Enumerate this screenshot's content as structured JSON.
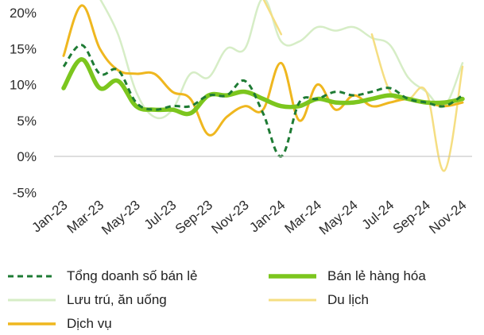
{
  "chart_data": {
    "type": "line",
    "x": [
      "Jan-23",
      "Feb-23",
      "Mar-23",
      "Apr-23",
      "May-23",
      "Jun-23",
      "Jul-23",
      "Aug-23",
      "Sep-23",
      "Oct-23",
      "Nov-23",
      "Dec-23",
      "Jan-24",
      "Feb-24",
      "Mar-24",
      "Apr-24",
      "May-24",
      "Jun-24",
      "Jul-24",
      "Aug-24",
      "Sep-24",
      "Oct-24",
      "Nov-24"
    ],
    "x_tick_labels": [
      "Jan-23",
      "Mar-23",
      "May-23",
      "Jul-23",
      "Sep-23",
      "Nov-23",
      "Jan-24",
      "Mar-24",
      "May-24",
      "Jul-24",
      "Sep-24",
      "Nov-24"
    ],
    "y_tick_labels": [
      "20%",
      "15%",
      "10%",
      "5%",
      "0%",
      "-5%"
    ],
    "ylim": [
      -5,
      20
    ],
    "grid": false,
    "legend_placement": "bottom",
    "series": [
      {
        "name": "Tổng doanh số bán lẻ",
        "color": "#1e7b34",
        "style": "dashed",
        "width": 3,
        "values": [
          12.5,
          15.5,
          11.5,
          12.0,
          7.5,
          6.5,
          7.0,
          7.0,
          8.5,
          8.5,
          10.5,
          6.0,
          0.0,
          7.5,
          8.0,
          9.0,
          8.5,
          9.0,
          9.5,
          8.0,
          7.5,
          7.0,
          8.5
        ]
      },
      {
        "name": "Bán lẻ hàng hóa",
        "color": "#7cc61e",
        "style": "solid",
        "width": 5.5,
        "values": [
          9.5,
          13.5,
          9.5,
          10.5,
          7.0,
          6.5,
          6.5,
          6.0,
          8.5,
          8.5,
          9.0,
          8.0,
          7.0,
          7.0,
          8.0,
          7.5,
          7.5,
          8.0,
          8.5,
          8.0,
          7.5,
          7.5,
          8.0
        ]
      },
      {
        "name": "Lưu trú, ăn uống",
        "color": "#d6edc6",
        "style": "solid",
        "width": 2.5,
        "values": [
          null,
          null,
          22.0,
          17.0,
          9.0,
          5.5,
          6.5,
          11.5,
          11.0,
          15.0,
          15.0,
          22.0,
          16.0,
          16.0,
          18.0,
          17.5,
          18.0,
          16.5,
          15.5,
          11.0,
          9.0,
          7.0,
          13.0
        ]
      },
      {
        "name": "Du lịch",
        "color": "#f5de82",
        "style": "solid",
        "width": 2.5,
        "values": [
          null,
          null,
          null,
          null,
          null,
          null,
          21.0,
          null,
          null,
          null,
          null,
          22.0,
          17.0,
          null,
          null,
          null,
          null,
          17.0,
          9.0,
          8.0,
          9.0,
          -2.0,
          12.5
        ]
      },
      {
        "name": "Dịch vụ",
        "color": "#efb71f",
        "style": "solid",
        "width": 3,
        "values": [
          14.0,
          21.0,
          15.0,
          12.0,
          11.5,
          11.5,
          9.0,
          8.0,
          3.0,
          5.5,
          7.0,
          6.5,
          13.0,
          5.0,
          10.0,
          6.5,
          8.5,
          7.0,
          7.5,
          8.0,
          7.5,
          7.0,
          7.5
        ]
      }
    ]
  }
}
